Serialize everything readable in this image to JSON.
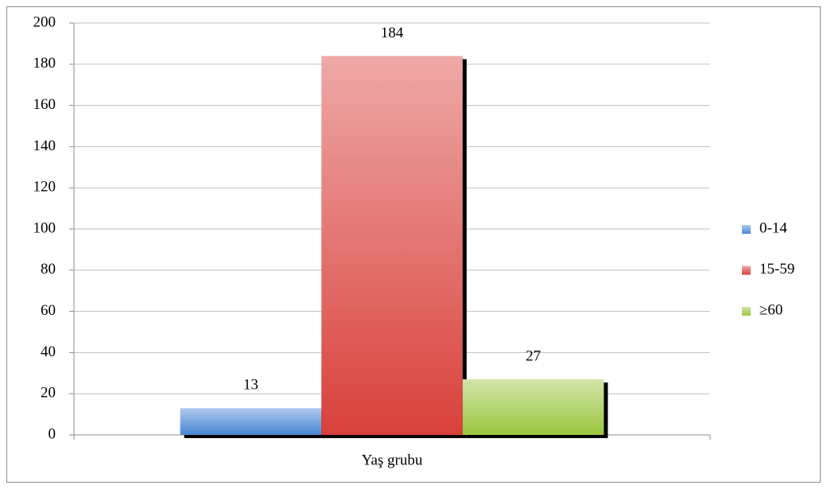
{
  "chart_data": {
    "type": "bar",
    "categories": [
      "Yaş grubu"
    ],
    "series": [
      {
        "name": "0-14",
        "color": "#4a86d4",
        "values": [
          13
        ]
      },
      {
        "name": "15-59",
        "color": "#d9403b",
        "values": [
          184
        ]
      },
      {
        "name": "≥60",
        "color": "#9cc63f",
        "values": [
          27
        ]
      }
    ],
    "ylim": [
      0,
      200
    ],
    "yticks": [
      0,
      20,
      40,
      60,
      80,
      100,
      120,
      140,
      160,
      180,
      200
    ],
    "grid": true,
    "legend": "right",
    "data_labels": true
  }
}
